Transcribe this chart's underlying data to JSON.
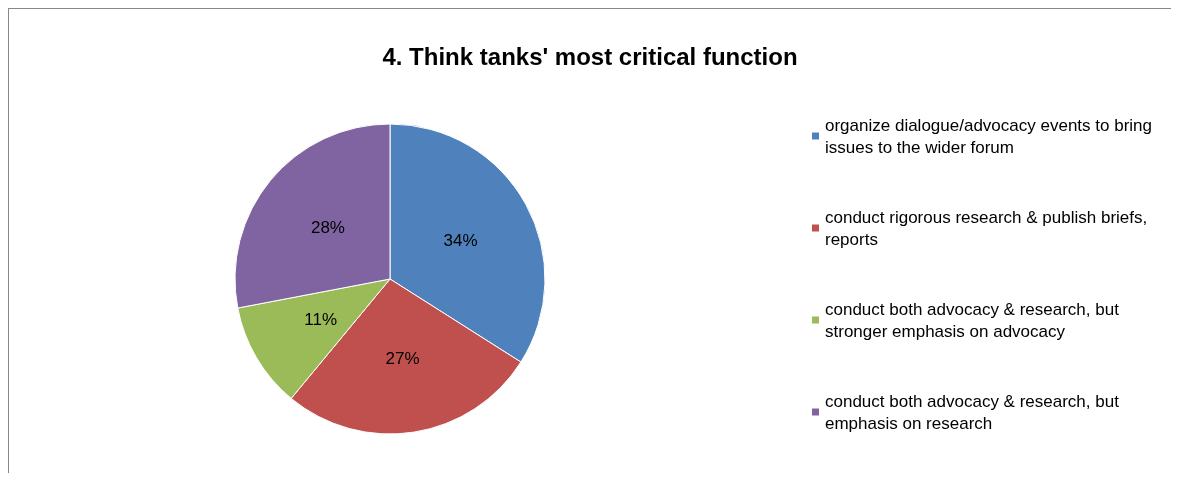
{
  "chart_data": {
    "type": "pie",
    "title": "4. Think tanks' most critical function",
    "categories": [
      "organize dialogue/advocacy events to bring issues to the wider forum",
      "conduct rigorous research & publish briefs, reports",
      "conduct both advocacy & research, but stronger emphasis on advocacy",
      "conduct both advocacy & research, but emphasis on research"
    ],
    "values": [
      34,
      27,
      11,
      28
    ],
    "value_labels": [
      "34%",
      "27%",
      "11%",
      "28%"
    ],
    "colors": [
      "#4f81bd",
      "#c0504d",
      "#9bbb59",
      "#8064a2"
    ],
    "legend": "right"
  }
}
